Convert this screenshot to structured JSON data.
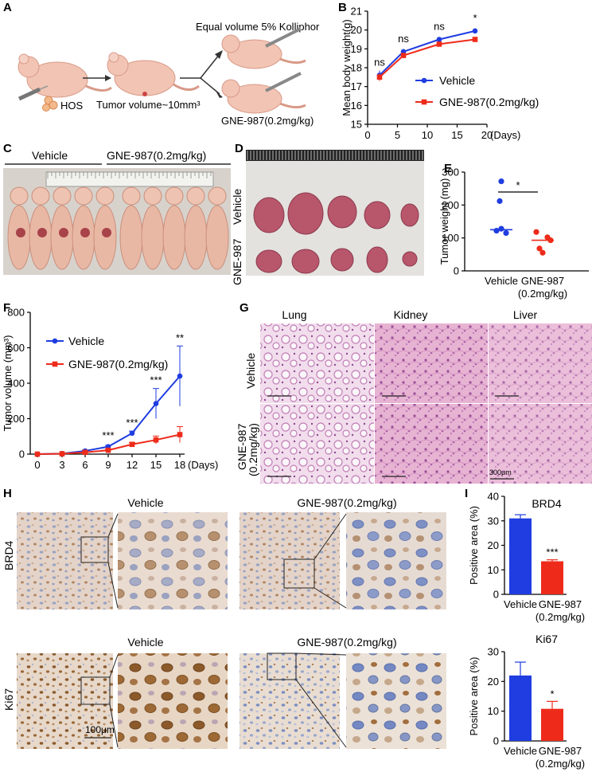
{
  "panels": {
    "A": "A",
    "B": "B",
    "C": "C",
    "D": "D",
    "E": "E",
    "F": "F",
    "G": "G",
    "H": "H",
    "I": "I"
  },
  "panel_a": {
    "top_label": "Equal volume 5% Kolliphor",
    "cells": "HOS",
    "tumor": "Tumor volume~10mm³",
    "bottom_label": "GNE-987(0.2mg/kg)"
  },
  "panel_c": {
    "vehicle": "Vehicle",
    "treated": "GNE-987(0.2mg/kg)"
  },
  "panel_d": {
    "row1": "Vehicle",
    "row2": "GNE-987"
  },
  "panel_g": {
    "cols": [
      "Lung",
      "Kidney",
      "Liver"
    ],
    "row1": "Vehicle",
    "row2a": "GNE-987",
    "row2b": "(0.2mg/kg)",
    "scale": "300μm"
  },
  "panel_h": {
    "vehicle": "Vehicle",
    "treated": "GNE-987(0.2mg/kg)",
    "row1": "BRD4",
    "row2": "Ki67",
    "scale": "100μm"
  },
  "colors": {
    "vehicle": "#1f3de0",
    "treated": "#ee2b1a"
  },
  "chart_data": [
    {
      "id": "B",
      "type": "line",
      "x": [
        2,
        6,
        12,
        18
      ],
      "series": [
        {
          "name": "Vehicle",
          "values": [
            17.6,
            18.85,
            19.5,
            19.95
          ],
          "errors": [
            0.25,
            0.15,
            0.1,
            0.1
          ]
        },
        {
          "name": "GNE-987(0.2mg/kg)",
          "values": [
            17.5,
            18.65,
            19.25,
            19.5
          ],
          "errors": [
            0.2,
            0.12,
            0.1,
            0.08
          ]
        }
      ],
      "annotations": [
        "ns",
        "ns",
        "ns",
        "*"
      ],
      "ylabel": "Mean body weight(g)",
      "xlabel": "(Days)",
      "xlim": [
        0,
        20
      ],
      "ylim": [
        15,
        21
      ],
      "xticks": [
        "0",
        "5",
        "10",
        "15",
        "20"
      ],
      "yticks": [
        "15",
        "16",
        "17",
        "18",
        "19",
        "20",
        "21"
      ],
      "legend": "center-right"
    },
    {
      "id": "E",
      "type": "scatter",
      "categories": [
        "Vehicle",
        "GNE-987"
      ],
      "category_sub": [
        "",
        "(0.2mg/kg)"
      ],
      "series": [
        {
          "name": "Vehicle",
          "values": [
            272,
            212,
            128,
            122,
            115
          ],
          "mean": 125
        },
        {
          "name": "GNE-987",
          "values": [
            118,
            102,
            93,
            68,
            55
          ],
          "mean": 93
        }
      ],
      "ylabel": "Tumor weight (mg)",
      "ylim": [
        0,
        300
      ],
      "yticks": [
        "0",
        "100",
        "200",
        "300"
      ],
      "annotation": "*"
    },
    {
      "id": "F",
      "type": "line",
      "x": [
        0,
        3,
        6,
        9,
        12,
        15,
        18
      ],
      "xticks": [
        "0",
        "3",
        "6",
        "9",
        "12",
        "15",
        "18"
      ],
      "series": [
        {
          "name": "Vehicle",
          "values": [
            0,
            3,
            18,
            42,
            118,
            285,
            440
          ],
          "errors": [
            0,
            1,
            5,
            8,
            12,
            85,
            170
          ]
        },
        {
          "name": "GNE-987(0.2mg/kg)",
          "values": [
            0,
            2,
            10,
            22,
            55,
            80,
            110
          ],
          "errors": [
            0,
            1,
            3,
            6,
            10,
            22,
            45
          ]
        }
      ],
      "annotations": [
        "***",
        "***",
        "***",
        "**"
      ],
      "ylabel": "Tumor volume (mm³)",
      "xlabel": "(Days)",
      "ylim": [
        0,
        800
      ],
      "yticks": [
        "0",
        "200",
        "400",
        "600",
        "800"
      ],
      "legend": "top-left"
    },
    {
      "id": "I-BRD4",
      "type": "bar",
      "title": "BRD4",
      "categories": [
        "Vehicle",
        "GNE-987"
      ],
      "category_sub": [
        "",
        "(0.2mg/kg)"
      ],
      "values": [
        31,
        13.5
      ],
      "errors": [
        1.5,
        0.6
      ],
      "annotation": "***",
      "ylabel": "Positive area (%)",
      "ylim": [
        0,
        40
      ],
      "yticks": [
        "0",
        "10",
        "20",
        "30",
        "40"
      ]
    },
    {
      "id": "I-Ki67",
      "type": "bar",
      "title": "Ki67",
      "categories": [
        "Vehicle",
        "GNE-987"
      ],
      "category_sub": [
        "",
        "(0.2mg/kg)"
      ],
      "values": [
        22,
        10.8
      ],
      "errors": [
        4.5,
        2.5
      ],
      "annotation": "*",
      "ylabel": "Positive area (%)",
      "ylim": [
        0,
        30
      ],
      "yticks": [
        "0",
        "10",
        "20",
        "30"
      ]
    }
  ]
}
